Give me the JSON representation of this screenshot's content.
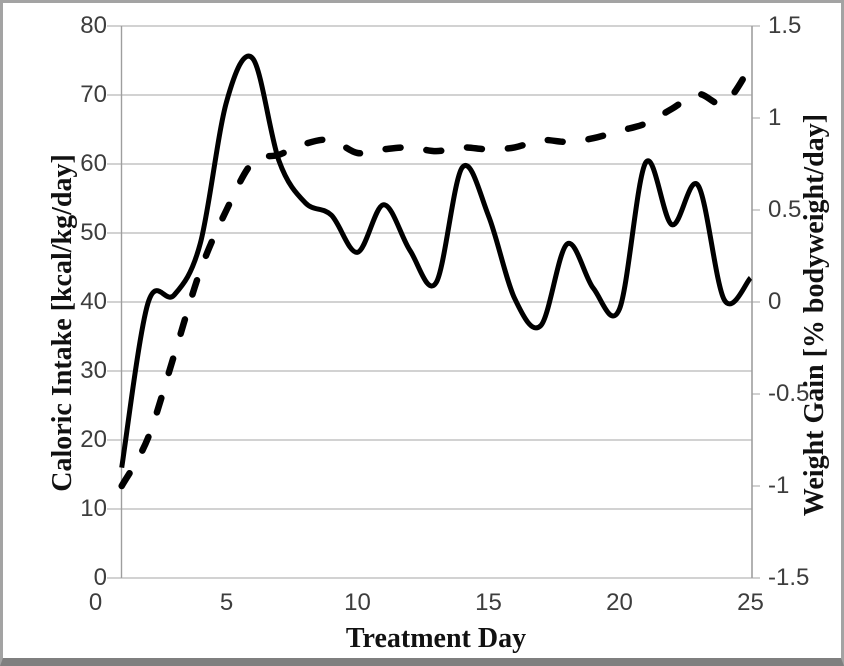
{
  "chart_data": {
    "type": "line",
    "title": "",
    "xlabel": "Treatment Day",
    "ylabel_left": "Caloric Intake [kcal/kg/day]",
    "ylabel_right": "Weight Gain [% bodyweight/day]",
    "xlim": [
      0,
      25
    ],
    "ylim_left": [
      0,
      80
    ],
    "ylim_right": [
      -1.5,
      1.5
    ],
    "x_tick_labels": [
      "0",
      "5",
      "10",
      "15",
      "20",
      "25"
    ],
    "x_tick_values": [
      0,
      5,
      10,
      15,
      20,
      25
    ],
    "y_left_tick_labels": [
      "0",
      "10",
      "20",
      "30",
      "40",
      "50",
      "60",
      "70",
      "80"
    ],
    "y_left_tick_values": [
      0,
      10,
      20,
      30,
      40,
      50,
      60,
      70,
      80
    ],
    "y_right_tick_labels": [
      "1.5",
      "1",
      "0.5",
      "0",
      "-0.5",
      "-1",
      "-1.5"
    ],
    "y_right_tick_values": [
      1.5,
      1,
      0.5,
      0,
      -0.5,
      -1,
      -1.5
    ],
    "grid": "horizontal-only",
    "legend": "none",
    "series": [
      {
        "name": "Caloric Intake",
        "axis": "left",
        "style": "solid",
        "color": "#000000",
        "x": [
          1,
          2,
          3,
          4,
          5,
          6,
          7,
          8,
          9,
          10,
          11,
          12,
          13,
          14,
          15,
          16,
          17,
          18,
          19,
          20,
          21,
          22,
          23,
          24,
          25
        ],
        "values": [
          16,
          39.8,
          41,
          48.5,
          69,
          75.3,
          60.5,
          54.4,
          52.6,
          47.2,
          54.1,
          47.5,
          42.8,
          59.5,
          52.5,
          40.5,
          36.6,
          48.4,
          42,
          39,
          60.2,
          51.2,
          56.9,
          40.3,
          43.5
        ]
      },
      {
        "name": "Weight Gain",
        "axis": "right",
        "style": "dashed",
        "color": "#000000",
        "x": [
          1,
          2,
          3,
          4,
          5,
          6,
          7,
          8,
          9,
          10,
          11,
          12,
          13,
          14,
          15,
          16,
          17,
          18,
          19,
          20,
          21,
          22,
          23,
          24,
          25
        ],
        "values": [
          -1.0,
          -0.74,
          -0.29,
          0.17,
          0.5,
          0.76,
          0.8,
          0.86,
          0.88,
          0.81,
          0.83,
          0.84,
          0.82,
          0.84,
          0.83,
          0.84,
          0.88,
          0.87,
          0.89,
          0.93,
          0.97,
          1.05,
          1.13,
          1.08,
          1.28
        ]
      }
    ]
  },
  "colors": {
    "series_line": "#000000",
    "gridline": "#b8b8b8",
    "axis_line": "#9e9e9e",
    "tick_label": "#3d3d3d",
    "title": "#111111",
    "outer_border": "#a3a3a3",
    "outer_border_bottom": "#7f7f7f",
    "background": "#ffffff"
  }
}
